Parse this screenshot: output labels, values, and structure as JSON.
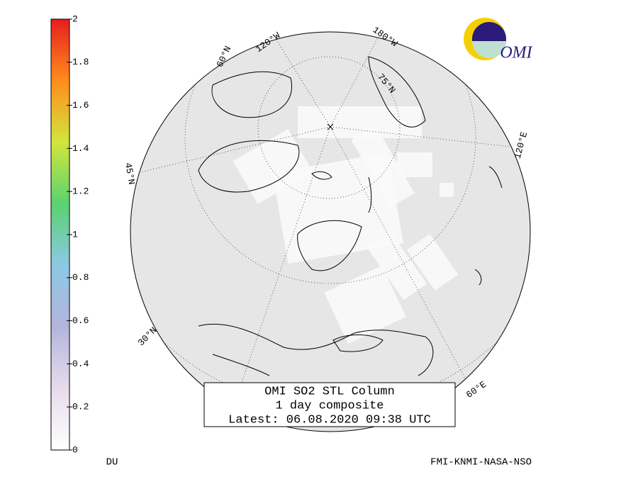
{
  "colorbar": {
    "lim": [
      0,
      2
    ],
    "ticks": [
      0,
      0.2,
      0.4,
      0.6,
      0.8,
      1,
      1.2,
      1.4,
      1.6,
      1.8,
      2
    ],
    "colors": [
      "#ffffff",
      "#e6dcec",
      "#b4b4dc",
      "#8cc8e6",
      "#5ad270",
      "#d2e63c",
      "#ff8c1e",
      "#e61e1e"
    ],
    "unit": "DU"
  },
  "title_box": {
    "line1": "OMI SO2 STL Column",
    "line2": "1 day composite",
    "line3": "Latest: 06.08.2020 09:38 UTC"
  },
  "map_labels": {
    "lon_120w": "120°W",
    "lon_180w": "180°W",
    "lat_75n": "75°N",
    "lat_60n": "60°N",
    "lon_120e": "120°E",
    "lon_60e": "60°E",
    "lat_30n": "30°N",
    "lat_45n": "45°N"
  },
  "logo": "OMI",
  "credit": "FMI-KNMI-NASA-NSO"
}
